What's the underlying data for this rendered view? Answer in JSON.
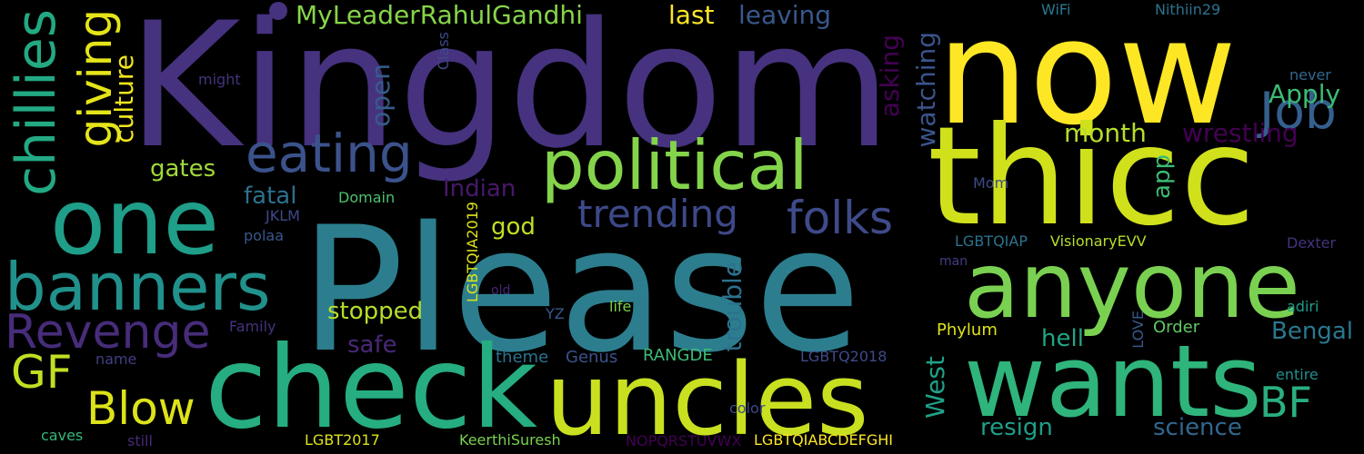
{
  "background": "#000000",
  "words": [
    {
      "text": "Kingdom",
      "color": "#46327e"
    },
    {
      "text": "Please",
      "color": "#2c7e8e"
    },
    {
      "text": "now",
      "color": "#fde725"
    },
    {
      "text": "thicc",
      "color": "#d0e11c"
    },
    {
      "text": "check",
      "color": "#26ad81"
    },
    {
      "text": "uncles",
      "color": "#c8e020"
    },
    {
      "text": "wants",
      "color": "#2fb47c"
    },
    {
      "text": "anyone",
      "color": "#7ad151"
    },
    {
      "text": "one",
      "color": "#1f9e89"
    },
    {
      "text": "political",
      "color": "#84d44b"
    },
    {
      "text": "banners",
      "color": "#21918c"
    },
    {
      "text": "eating",
      "color": "#3b528b"
    },
    {
      "text": "chillies",
      "color": "#23a983"
    },
    {
      "text": "giving",
      "color": "#e5e419"
    },
    {
      "text": "Revenge",
      "color": "#472c7a"
    },
    {
      "text": "Job",
      "color": "#355f8d"
    },
    {
      "text": "folks",
      "color": "#3e4a89"
    },
    {
      "text": "trending",
      "color": "#3e4989"
    },
    {
      "text": "Blow",
      "color": "#dde318"
    },
    {
      "text": "GF",
      "color": "#c2df23"
    },
    {
      "text": "BF",
      "color": "#29af7f"
    },
    {
      "text": "MyLeaderRahulGandhi",
      "color": "#86d549"
    },
    {
      "text": "culture",
      "color": "#f1e51d"
    },
    {
      "text": "last",
      "color": "#fde725"
    },
    {
      "text": "leaving",
      "color": "#38588c"
    },
    {
      "text": "Apply",
      "color": "#3bbb75"
    },
    {
      "text": "asking",
      "color": "#440154"
    },
    {
      "text": "watching",
      "color": "#3a548c"
    },
    {
      "text": "open",
      "color": "#365c8d"
    },
    {
      "text": "month",
      "color": "#b5de2b"
    },
    {
      "text": "wrestling",
      "color": "#440154"
    },
    {
      "text": "gates",
      "color": "#a0da39"
    },
    {
      "text": "fatal",
      "color": "#2d708e"
    },
    {
      "text": "Indian",
      "color": "#48186a"
    },
    {
      "text": "app",
      "color": "#3bbb75"
    },
    {
      "text": "god",
      "color": "#c0df25"
    },
    {
      "text": "trouble",
      "color": "#2c728e"
    },
    {
      "text": "stopped",
      "color": "#b5de2b"
    },
    {
      "text": "Bengal",
      "color": "#2a788e"
    },
    {
      "text": "safe",
      "color": "#482878"
    },
    {
      "text": "hell",
      "color": "#21a685"
    },
    {
      "text": "West",
      "color": "#1fa188"
    },
    {
      "text": "resign",
      "color": "#1f9e89"
    },
    {
      "text": "science",
      "color": "#31688e"
    },
    {
      "text": "WiFi",
      "color": "#2a788e"
    },
    {
      "text": "Nithiin29",
      "color": "#2c728e"
    },
    {
      "text": "never",
      "color": "#31688e"
    },
    {
      "text": "might",
      "color": "#46327e"
    },
    {
      "text": "Class",
      "color": "#3e4a89"
    },
    {
      "text": "Domain",
      "color": "#4ac16d"
    },
    {
      "text": "JKLM",
      "color": "#3e4989"
    },
    {
      "text": "polaa",
      "color": "#39568c"
    },
    {
      "text": "LGBTQIA2019",
      "color": "#dde318"
    },
    {
      "text": "Mom",
      "color": "#3e4a89"
    },
    {
      "text": "LGBTQIAP",
      "color": "#2c728e"
    },
    {
      "text": "VisionaryEVV",
      "color": "#b5de2b"
    },
    {
      "text": "Dexter",
      "color": "#46327e"
    },
    {
      "text": "man",
      "color": "#433e85"
    },
    {
      "text": "old",
      "color": "#482475"
    },
    {
      "text": "life",
      "color": "#7ad151"
    },
    {
      "text": "YZ",
      "color": "#38588c"
    },
    {
      "text": "Family",
      "color": "#46327e"
    },
    {
      "text": "Phylum",
      "color": "#dde318"
    },
    {
      "text": "adiri",
      "color": "#1f9e89"
    },
    {
      "text": "LOVE",
      "color": "#38588c"
    },
    {
      "text": "Order",
      "color": "#5ec962"
    },
    {
      "text": "entire",
      "color": "#21918c"
    },
    {
      "text": "name",
      "color": "#433e85"
    },
    {
      "text": "theme",
      "color": "#2c728e"
    },
    {
      "text": "Genus",
      "color": "#3b528b"
    },
    {
      "text": "RANGDE",
      "color": "#3bbb75"
    },
    {
      "text": "LGBTQ2018",
      "color": "#3e4a89"
    },
    {
      "text": "color",
      "color": "#3e4989"
    },
    {
      "text": "caves",
      "color": "#35b779"
    },
    {
      "text": "still",
      "color": "#482878"
    },
    {
      "text": "LGBT2017",
      "color": "#dde318"
    },
    {
      "text": "KeerthiSuresh",
      "color": "#7ad151"
    },
    {
      "text": "NOPQRSTUVWX",
      "color": "#440154"
    },
    {
      "text": "LGBTQIABCDEFGHI",
      "color": "#fde725"
    }
  ]
}
